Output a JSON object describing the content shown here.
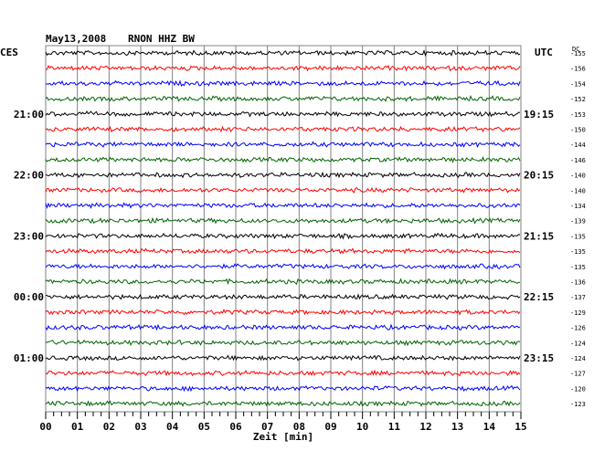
{
  "header": {
    "date": "May13,2008",
    "station": "RNON HHZ BW",
    "left_zone": "CES",
    "right_zone": "UTC",
    "dc_label": "DC"
  },
  "footer": {
    "xlabel": "Zeit [min]"
  },
  "colors": {
    "black": "#000000",
    "red": "#ff0000",
    "blue": "#0000ff",
    "green": "#006400",
    "grid": "#808080"
  },
  "chart_data": {
    "type": "line",
    "title": "May13,2008 RNON HHZ BW",
    "xlabel": "Zeit [min]",
    "ylabel": "",
    "xlim": [
      0,
      15
    ],
    "x_ticks": [
      "00",
      "01",
      "02",
      "03",
      "04",
      "05",
      "06",
      "07",
      "08",
      "09",
      "10",
      "11",
      "12",
      "13",
      "14",
      "15"
    ],
    "trace_count": 24,
    "trace_colors": [
      "#000000",
      "#ff0000",
      "#0000ff",
      "#006400"
    ],
    "left_time_labels": [
      {
        "trace": 4,
        "label": "21:00"
      },
      {
        "trace": 8,
        "label": "22:00"
      },
      {
        "trace": 12,
        "label": "23:00"
      },
      {
        "trace": 16,
        "label": "00:00"
      },
      {
        "trace": 20,
        "label": "01:00"
      }
    ],
    "right_time_labels": [
      {
        "trace": 4,
        "label": "19:15"
      },
      {
        "trace": 8,
        "label": "20:15"
      },
      {
        "trace": 12,
        "label": "21:15"
      },
      {
        "trace": 16,
        "label": "22:15"
      },
      {
        "trace": 20,
        "label": "23:15"
      }
    ],
    "dc_values": [
      -155,
      -156,
      -154,
      -152,
      -153,
      -150,
      -144,
      -146,
      -140,
      -140,
      -134,
      -139,
      -135,
      -135,
      -135,
      -136,
      -137,
      -129,
      -126,
      -124,
      -124,
      -127,
      -120,
      -123
    ]
  }
}
